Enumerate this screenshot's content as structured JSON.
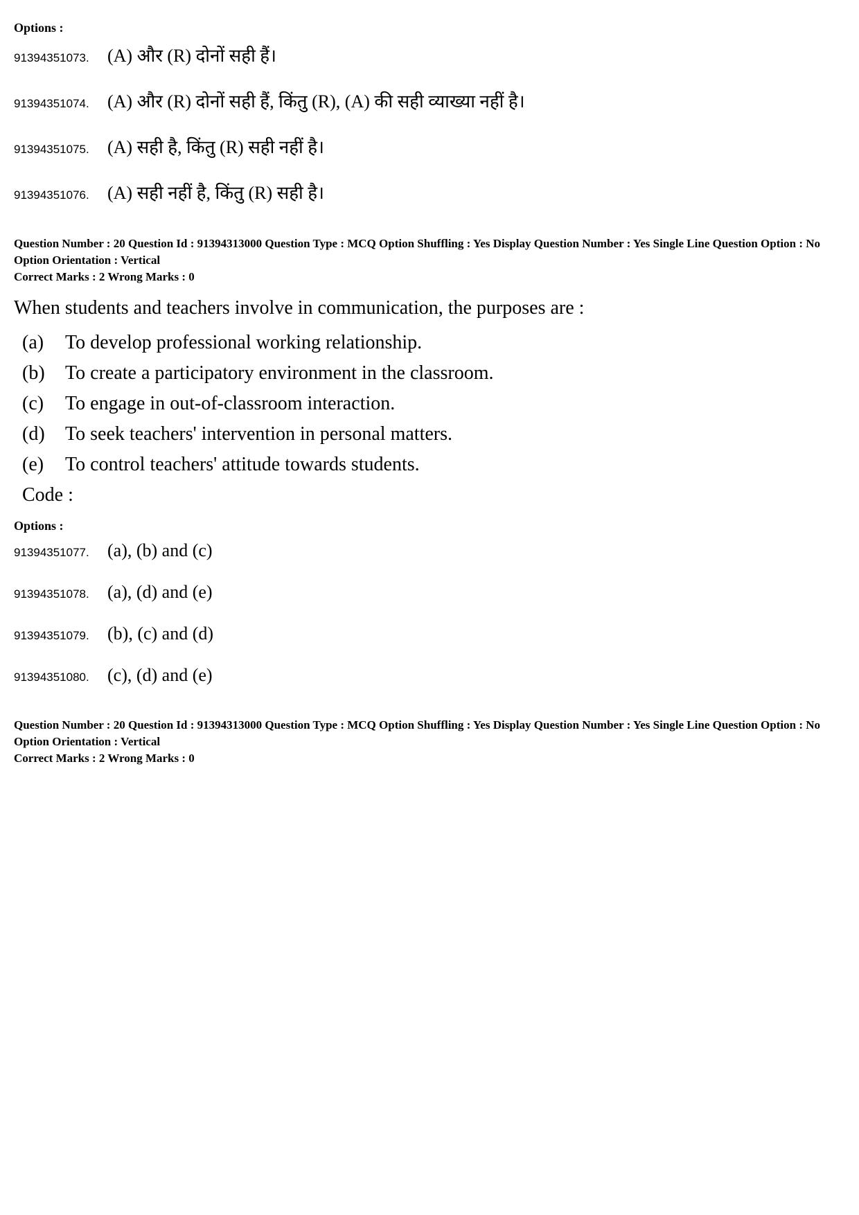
{
  "q19": {
    "options_label": "Options :",
    "options": [
      {
        "id": "91394351073.",
        "text": "(A) और (R) दोनों सही हैं।"
      },
      {
        "id": "91394351074.",
        "text": "(A) और (R) दोनों सही हैं, किंतु (R), (A) की सही व्याख्या नहीं है।"
      },
      {
        "id": "91394351075.",
        "text": "(A) सही है, किंतु (R) सही नहीं है।"
      },
      {
        "id": "91394351076.",
        "text": "(A) सही नहीं है, किंतु (R) सही है।"
      }
    ]
  },
  "q20": {
    "meta_line1": "Question Number : 20  Question Id : 91394313000  Question Type : MCQ  Option Shuffling : Yes  Display Question Number : Yes  Single Line Question Option : No  Option Orientation : Vertical",
    "meta_line2": "Correct Marks : 2  Wrong Marks : 0",
    "question_text": "When students and teachers involve in communication, the purposes are :",
    "items": [
      {
        "label": "(a)",
        "text": "To develop professional working relationship."
      },
      {
        "label": "(b)",
        "text": "To create a participatory environment in the classroom."
      },
      {
        "label": "(c)",
        "text": "To engage in out-of-classroom interaction."
      },
      {
        "label": "(d)",
        "text": "To seek teachers' intervention in personal matters."
      },
      {
        "label": "(e)",
        "text": "To control teachers' attitude towards students."
      }
    ],
    "code_label": "Code :",
    "options_label": "Options :",
    "options": [
      {
        "id": "91394351077.",
        "text": "(a), (b) and (c)"
      },
      {
        "id": "91394351078.",
        "text": "(a), (d) and (e)"
      },
      {
        "id": "91394351079.",
        "text": "(b), (c) and (d)"
      },
      {
        "id": "91394351080.",
        "text": "(c), (d) and (e)"
      }
    ]
  },
  "q20b": {
    "meta_line1": "Question Number : 20  Question Id : 91394313000  Question Type : MCQ  Option Shuffling : Yes  Display Question Number : Yes  Single Line Question Option : No  Option Orientation : Vertical",
    "meta_line2": "Correct Marks : 2  Wrong Marks : 0"
  }
}
